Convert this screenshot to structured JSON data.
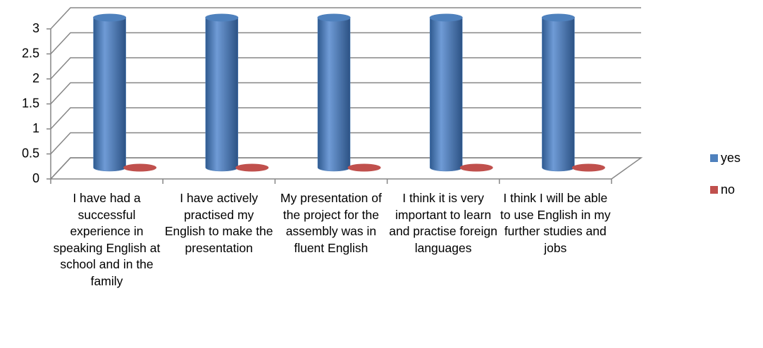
{
  "chart_data": {
    "type": "bar3d",
    "categories": [
      "I have had a successful experience in speaking English at school and in the family",
      "I have actively practised my English to make the presentation",
      "My presentation of the project for the assembly was in fluent English",
      "I think it is very important to learn and practise foreign languages",
      "I think I will be able to use English in my further studies and jobs"
    ],
    "series": [
      {
        "name": "yes",
        "color": "#4f81bd",
        "values": [
          3,
          3,
          3,
          3,
          3
        ]
      },
      {
        "name": "no",
        "color": "#c0504d",
        "values": [
          0,
          0,
          0,
          0,
          0
        ]
      }
    ],
    "ylim": [
      0,
      3
    ],
    "yticks": [
      0,
      0.5,
      1,
      1.5,
      2,
      2.5,
      3
    ],
    "grid": true,
    "legend": "right"
  }
}
